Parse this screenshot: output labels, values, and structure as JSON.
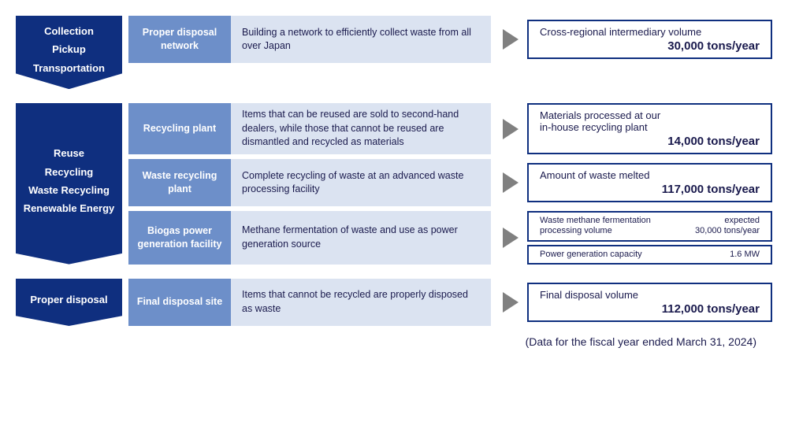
{
  "colors": {
    "category_bg": "#0f2f7f",
    "facility_bg": "#6d8fc9",
    "description_bg": "#dbe3f1",
    "description_text": "#1a1a4d",
    "triangle": "#808080",
    "metric_border": "#0f2f7f",
    "metric_text": "#1a1a4d",
    "footnote_text": "#1a1a4d"
  },
  "layout": {
    "arrow_notch": 14
  },
  "sections": [
    {
      "category": "Collection\nPickup\nTransportation",
      "rows": [
        {
          "facility": "Proper disposal network",
          "description": "Building a network to efficiently collect waste from all over Japan",
          "metrics": [
            {
              "style": "single",
              "label": "Cross-regional intermediary volume",
              "value": "30,000 tons/year"
            }
          ]
        }
      ]
    },
    {
      "category": "Reuse\nRecycling\nWaste Recycling\nRenewable Energy",
      "rows": [
        {
          "facility": "Recycling plant",
          "description": "Items that can be reused are sold to second-hand dealers, while those that cannot be reused are dismantled and recycled as materials",
          "metrics": [
            {
              "style": "single",
              "label": "Materials processed at our\nin-house recycling plant",
              "value": "14,000 tons/year"
            }
          ]
        },
        {
          "facility": "Waste recycling plant",
          "description": "Complete recycling of waste at an advanced waste processing facility",
          "metrics": [
            {
              "style": "single",
              "label": "Amount of waste melted",
              "value": "117,000 tons/year"
            }
          ]
        },
        {
          "facility": "Biogas power generation facility",
          "description": "Methane fermentation of waste and use as power generation source",
          "metrics": [
            {
              "style": "compact",
              "label": "Waste methane fermentation\nprocessing volume",
              "value": "expected\n30,000 tons/year"
            },
            {
              "style": "compact",
              "label": "Power generation capacity",
              "value": "1.6 MW"
            }
          ]
        }
      ]
    },
    {
      "category": "Proper disposal",
      "rows": [
        {
          "facility": "Final disposal site",
          "description": "Items that cannot be recycled are properly disposed as waste",
          "metrics": [
            {
              "style": "single",
              "label": "Final disposal volume",
              "value": "112,000 tons/year"
            }
          ]
        }
      ]
    }
  ],
  "footnote": "(Data for the fiscal year ended March 31, 2024)"
}
